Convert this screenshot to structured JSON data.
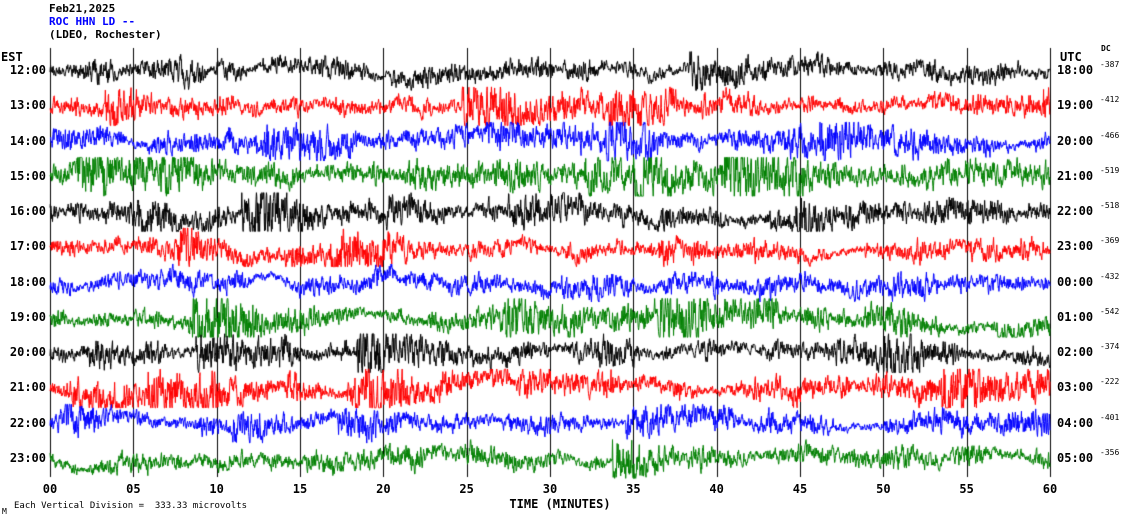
{
  "header": {
    "date": "Feb21,2025",
    "station": "ROC HHN LD --",
    "location": "(LDEO, Rochester)"
  },
  "axes": {
    "left_title": "EST",
    "right_title": "UTC",
    "dc_title": "DC"
  },
  "footer": {
    "note": "Each Vertical Division =  333.33 microvolts",
    "mark": "M"
  },
  "layout_colors": {
    "background": "#ffffff",
    "station_label_color": "#0000ff",
    "grid_color": "#000000"
  },
  "chart_data": {
    "type": "line",
    "title": "ROC HHN LD -- (LDEO, Rochester) helicorder, Feb21,2025",
    "xlabel": "TIME (MINUTES)",
    "x_range_minutes": [
      0,
      60
    ],
    "x_tick_labels": [
      "00",
      "05",
      "10",
      "15",
      "20",
      "25",
      "30",
      "35",
      "40",
      "45",
      "50",
      "55",
      "60"
    ],
    "grid": "vertical lines every 5 minutes",
    "legend_position": "none",
    "microvolts_per_division": 333.33,
    "trace_colors_cycle": [
      "#000000",
      "#ff0000",
      "#0000ff",
      "#008000"
    ],
    "waveform_note": "continuous background seismic noise traces; individual samples not resolvable at this scale",
    "rows": [
      {
        "est": "12:00",
        "utc": "18:00",
        "dc": "-387",
        "color": "#000000",
        "amp": 10
      },
      {
        "est": "13:00",
        "utc": "19:00",
        "dc": "-412",
        "color": "#ff0000",
        "amp": 11
      },
      {
        "est": "14:00",
        "utc": "20:00",
        "dc": "-466",
        "color": "#0000ff",
        "amp": 11
      },
      {
        "est": "15:00",
        "utc": "21:00",
        "dc": "-519",
        "color": "#008000",
        "amp": 12
      },
      {
        "est": "16:00",
        "utc": "22:00",
        "dc": "-518",
        "color": "#000000",
        "amp": 11
      },
      {
        "est": "17:00",
        "utc": "23:00",
        "dc": "-369",
        "color": "#ff0000",
        "amp": 10
      },
      {
        "est": "18:00",
        "utc": "00:00",
        "dc": "-432",
        "color": "#0000ff",
        "amp": 10
      },
      {
        "est": "19:00",
        "utc": "01:00",
        "dc": "-542",
        "color": "#008000",
        "amp": 12
      },
      {
        "est": "20:00",
        "utc": "02:00",
        "dc": "-374",
        "color": "#000000",
        "amp": 11
      },
      {
        "est": "21:00",
        "utc": "03:00",
        "dc": "-222",
        "color": "#ff0000",
        "amp": 12
      },
      {
        "est": "22:00",
        "utc": "04:00",
        "dc": "-401",
        "color": "#0000ff",
        "amp": 10
      },
      {
        "est": "23:00",
        "utc": "05:00",
        "dc": "-356",
        "color": "#008000",
        "amp": 10
      }
    ]
  }
}
